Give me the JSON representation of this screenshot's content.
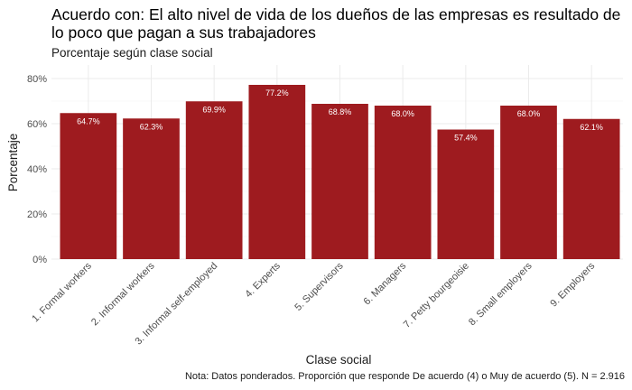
{
  "chart_data": {
    "type": "bar",
    "title": "Acuerdo con: El alto nivel de vida de los dueños de las empresas es resultado de lo poco que pagan a sus trabajadores",
    "subtitle": "Porcentaje según clase social",
    "xlabel": "Clase social",
    "ylabel": "Porcentaje",
    "caption": "Nota: Datos ponderados. Proporción que responde De acuerdo (4) o Muy de acuerdo (5). N = 2.916",
    "categories": [
      "1. Formal workers",
      "2. Informal workers",
      "3. Informal self-employed",
      "4. Experts",
      "5. Supervisors",
      "6. Managers",
      "7. Petty bourgeoisie",
      "8. Small employers",
      "9. Employers"
    ],
    "values": [
      64.7,
      62.3,
      69.9,
      77.2,
      68.8,
      68.0,
      57.4,
      68.0,
      62.1
    ],
    "value_labels": [
      "64.7%",
      "62.3%",
      "69.9%",
      "77.2%",
      "68.8%",
      "68.0%",
      "57.4%",
      "68.0%",
      "62.1%"
    ],
    "ylim": [
      0,
      80
    ],
    "y_ticks": [
      0,
      20,
      40,
      60,
      80
    ],
    "y_tick_labels": [
      "0%",
      "20%",
      "40%",
      "60%",
      "80%"
    ],
    "bar_color": "#9e1b1f",
    "grid": true,
    "legend": "none"
  }
}
